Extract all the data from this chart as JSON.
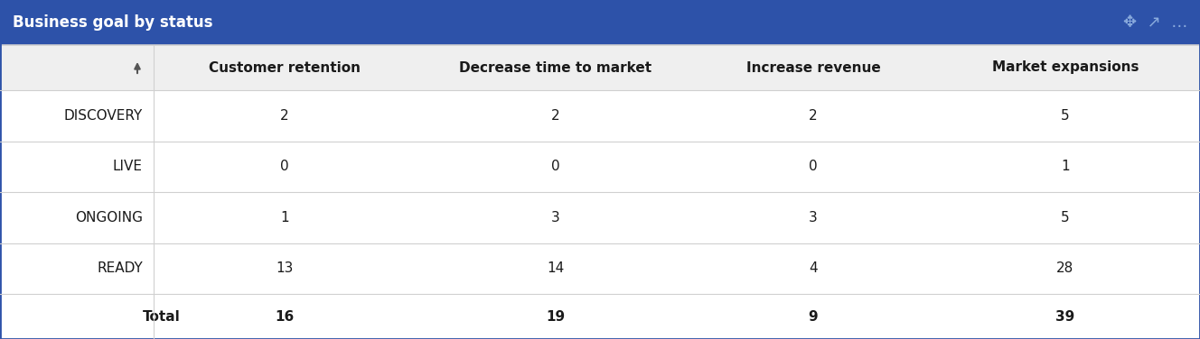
{
  "title": "Business goal by status",
  "title_bg_color": "#2D52A9",
  "title_text_color": "#FFFFFF",
  "header_bg_color": "#EFEFEF",
  "border_color": "#D0D0D0",
  "columns": [
    "",
    "Customer retention",
    "Decrease time to market",
    "Increase revenue",
    "Market expansions"
  ],
  "rows": [
    [
      "DISCOVERY",
      "2",
      "2",
      "2",
      "5"
    ],
    [
      "LIVE",
      "0",
      "0",
      "0",
      "1"
    ],
    [
      "ONGOING",
      "1",
      "3",
      "3",
      "5"
    ],
    [
      "READY",
      "13",
      "14",
      "4",
      "28"
    ]
  ],
  "total_row": [
    "Total",
    "16",
    "19",
    "9",
    "39"
  ],
  "title_fontsize": 12,
  "header_fontsize": 11,
  "cell_fontsize": 11,
  "fig_width": 13.28,
  "fig_height": 3.76,
  "dpi": 100
}
